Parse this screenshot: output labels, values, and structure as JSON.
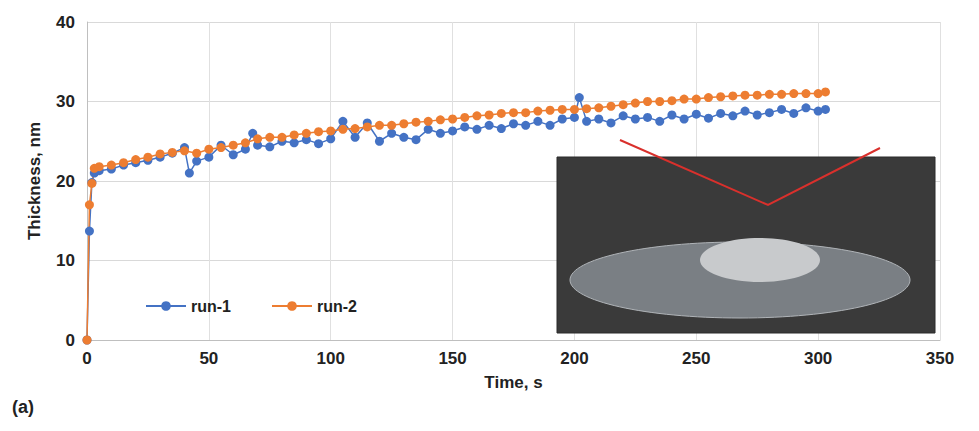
{
  "chart_data": {
    "type": "line",
    "panel_label": "(a)",
    "x_label": "Time, s",
    "y_label": "Thickness, nm",
    "xlim": [
      0,
      350
    ],
    "xticks": [
      0,
      50,
      100,
      150,
      200,
      250,
      300,
      350
    ],
    "ylim": [
      0,
      40
    ],
    "yticks": [
      0,
      10,
      20,
      30,
      40
    ],
    "grid": true,
    "legend": "lower left",
    "marker": "circle",
    "series": [
      {
        "name": "run-1",
        "color": "#4472c4",
        "x": [
          0,
          1,
          2,
          3,
          5,
          10,
          15,
          20,
          25,
          30,
          35,
          40,
          42,
          45,
          50,
          55,
          60,
          65,
          68,
          70,
          75,
          80,
          85,
          90,
          95,
          100,
          105,
          110,
          115,
          120,
          125,
          130,
          135,
          140,
          145,
          150,
          155,
          160,
          165,
          170,
          175,
          180,
          185,
          190,
          195,
          200,
          202,
          205,
          210,
          215,
          220,
          225,
          230,
          235,
          240,
          245,
          250,
          255,
          260,
          265,
          270,
          275,
          280,
          285,
          290,
          295,
          300,
          303
        ],
        "values": [
          0,
          13.7,
          19.8,
          21,
          21.3,
          21.5,
          22,
          22.3,
          22.6,
          23,
          23.5,
          24.2,
          21,
          22.5,
          23,
          24.5,
          23.3,
          24,
          26,
          24.5,
          24.3,
          25,
          24.8,
          25.2,
          24.7,
          25.3,
          27.5,
          25.5,
          27.3,
          25,
          26,
          25.5,
          25.2,
          26.5,
          26,
          26.3,
          26.8,
          26.5,
          27,
          26.6,
          27.2,
          27,
          27.5,
          27,
          27.8,
          28,
          30.5,
          27.5,
          27.8,
          27.3,
          28.2,
          27.8,
          28,
          27.5,
          28.3,
          27.8,
          28.4,
          27.9,
          28.5,
          28.2,
          28.8,
          28.3,
          28.6,
          29,
          28.5,
          29.2,
          28.8,
          29
        ]
      },
      {
        "name": "run-2",
        "color": "#ed7d31",
        "x": [
          0,
          1,
          2,
          3,
          5,
          10,
          15,
          20,
          25,
          30,
          35,
          40,
          45,
          50,
          55,
          60,
          65,
          70,
          75,
          80,
          85,
          90,
          95,
          100,
          105,
          110,
          115,
          120,
          125,
          130,
          135,
          140,
          145,
          150,
          155,
          160,
          165,
          170,
          175,
          180,
          185,
          190,
          195,
          200,
          205,
          210,
          215,
          220,
          225,
          230,
          235,
          240,
          245,
          250,
          255,
          260,
          265,
          270,
          275,
          280,
          285,
          290,
          295,
          300,
          303
        ],
        "values": [
          0,
          17,
          19.7,
          21.6,
          21.8,
          22,
          22.3,
          22.7,
          23,
          23.4,
          23.6,
          23.8,
          23.5,
          24,
          24.2,
          24.5,
          24.8,
          25.3,
          25.5,
          25.5,
          25.8,
          26,
          26.2,
          26.3,
          26.5,
          26.6,
          26.8,
          27,
          27,
          27.2,
          27.4,
          27.5,
          27.7,
          27.8,
          28,
          28.2,
          28.3,
          28.5,
          28.6,
          28.6,
          28.8,
          28.9,
          29,
          29,
          29.1,
          29.2,
          29.4,
          29.6,
          29.8,
          30,
          30,
          30.1,
          30.3,
          30.3,
          30.5,
          30.6,
          30.7,
          30.8,
          30.8,
          30.9,
          30.9,
          31,
          31,
          31,
          31.2
        ]
      }
    ]
  }
}
